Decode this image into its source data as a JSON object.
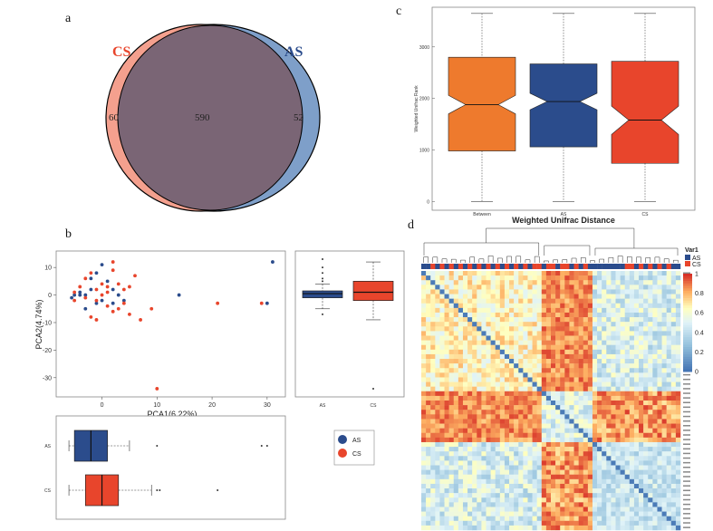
{
  "panels": {
    "a": "a",
    "b": "b",
    "c": "c",
    "d": "d"
  },
  "colors": {
    "AS": "#2B4C8C",
    "CS": "#E8452C",
    "Between": "#EE7A2D",
    "venn_cs": "#F4A08E",
    "venn_as": "#7E9FC9",
    "venn_overlap": "#7A6575"
  },
  "chart_data": [
    {
      "type": "venn",
      "sets": [
        "CS",
        "AS"
      ],
      "counts": {
        "CS_only": "60",
        "shared": "590",
        "AS_only": "52"
      }
    },
    {
      "type": "scatter",
      "xlabel": "PCA1(6.22%)",
      "ylabel": "PCA2(4.74%)",
      "xlim": [
        -7,
        32
      ],
      "ylim": [
        -35,
        14
      ],
      "xticks": [
        "0",
        "10",
        "20",
        "30"
      ],
      "yticks": [
        "10",
        "0",
        "-10",
        "-20",
        "-30"
      ],
      "series": [
        {
          "name": "AS",
          "points": [
            [
              -5,
              0
            ],
            [
              -5.5,
              -1
            ],
            [
              -4,
              1
            ],
            [
              -3,
              0
            ],
            [
              -2,
              2
            ],
            [
              -1,
              8
            ],
            [
              0,
              11
            ],
            [
              0,
              -2
            ],
            [
              1,
              5
            ],
            [
              2,
              2
            ],
            [
              3,
              0
            ],
            [
              -1,
              -3
            ],
            [
              -2,
              6
            ],
            [
              4,
              -2
            ],
            [
              14,
              0
            ],
            [
              30,
              -3
            ],
            [
              31,
              12
            ],
            [
              -3,
              -5
            ],
            [
              -4,
              0
            ],
            [
              2,
              -3
            ]
          ]
        },
        {
          "name": "CS",
          "points": [
            [
              -5,
              1
            ],
            [
              -4,
              3
            ],
            [
              -3,
              6
            ],
            [
              -2,
              8
            ],
            [
              -1,
              -2
            ],
            [
              0,
              0
            ],
            [
              1,
              1
            ],
            [
              1,
              -4
            ],
            [
              2,
              9
            ],
            [
              2,
              12
            ],
            [
              3,
              -5
            ],
            [
              4,
              2
            ],
            [
              5,
              -7
            ],
            [
              6,
              7
            ],
            [
              7,
              -9
            ],
            [
              9,
              -5
            ],
            [
              10,
              -34
            ],
            [
              21,
              -3
            ],
            [
              29,
              -3
            ],
            [
              -2,
              -8
            ],
            [
              -1,
              -9
            ],
            [
              3,
              4
            ],
            [
              5,
              3
            ],
            [
              0,
              4
            ],
            [
              -3,
              -1
            ],
            [
              -5,
              -2
            ],
            [
              4,
              -3
            ],
            [
              1,
              3
            ],
            [
              -1,
              2
            ],
            [
              2,
              -6
            ]
          ]
        }
      ]
    },
    {
      "type": "boxplot",
      "orientation": "vertical",
      "categories": [
        "AS",
        "CS"
      ],
      "ylim": [
        -35,
        14
      ],
      "boxes": [
        {
          "name": "AS",
          "min": -5,
          "q1": -1,
          "median": 0.5,
          "q3": 1.5,
          "max": 4,
          "outliers": [
            -7,
            8,
            10,
            13,
            6,
            5
          ]
        },
        {
          "name": "CS",
          "min": -9,
          "q1": -2,
          "median": 1,
          "q3": 5,
          "max": 12,
          "outliers": [
            -34
          ]
        }
      ]
    },
    {
      "type": "boxplot",
      "orientation": "horizontal",
      "categories": [
        "AS",
        "CS"
      ],
      "xlim": [
        -7,
        32
      ],
      "boxes": [
        {
          "name": "AS",
          "min": -6,
          "q1": -5,
          "median": -2,
          "q3": 1,
          "max": 5,
          "outliers": [
            10,
            29,
            30
          ]
        },
        {
          "name": "CS",
          "min": -6,
          "q1": -3,
          "median": 0,
          "q3": 3,
          "max": 9,
          "outliers": [
            10,
            10.5,
            21
          ]
        }
      ],
      "legend": [
        "AS",
        "CS"
      ]
    },
    {
      "type": "boxplot",
      "orientation": "vertical",
      "categories": [
        "Between",
        "AS",
        "CS"
      ],
      "xlabel": "Weighted Unifrac Distance",
      "ylabel": "Weighted Unifrac Rank",
      "yticks": [
        "0",
        "1000",
        "2000",
        "3000"
      ],
      "ylim": [
        -100,
        3700
      ],
      "boxes": [
        {
          "name": "Between",
          "min": 0,
          "q1": 980,
          "median": 1880,
          "q3": 2800,
          "max": 3650,
          "notch": [
            1700,
            2060
          ]
        },
        {
          "name": "AS",
          "min": 0,
          "q1": 1060,
          "median": 1940,
          "q3": 2670,
          "max": 3650,
          "notch": [
            1780,
            2100
          ]
        },
        {
          "name": "CS",
          "min": 0,
          "q1": 740,
          "median": 1580,
          "q3": 2720,
          "max": 3650,
          "notch": [
            1300,
            1850
          ]
        }
      ]
    },
    {
      "type": "heatmap",
      "legend_title": "Var1",
      "groups": [
        "AS",
        "CS"
      ],
      "colorbar_ticks": [
        "1",
        "0.8",
        "0.6",
        "0.4",
        "0.2",
        "0"
      ],
      "n": 56
    }
  ]
}
